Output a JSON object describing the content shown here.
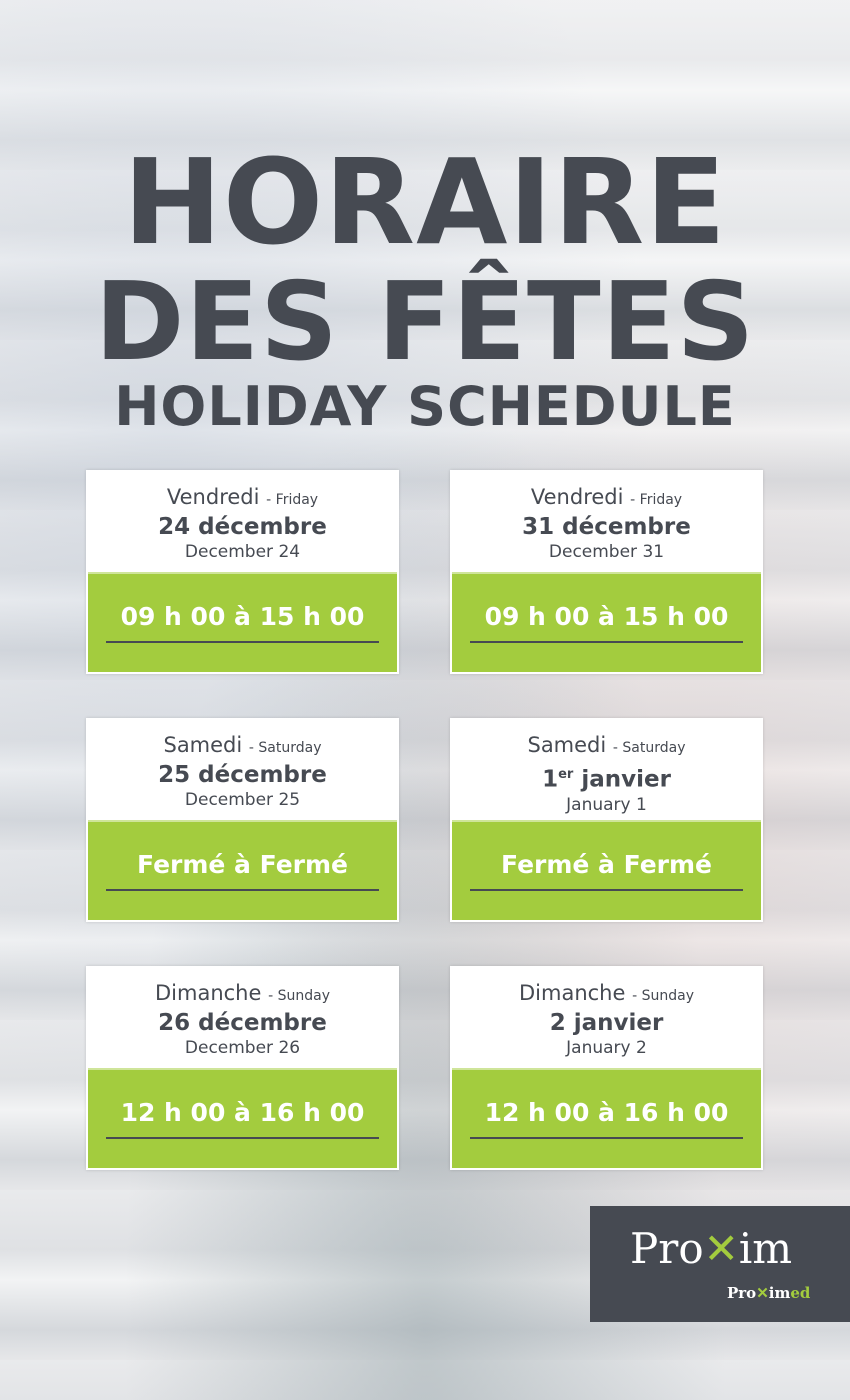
{
  "title": {
    "line1": "HORAIRE",
    "line2": "DES FÊTES",
    "line3": "HOLIDAY SCHEDULE"
  },
  "cards": [
    {
      "day_fr": "Vendredi",
      "day_en": "- Friday",
      "date_fr": "24 décembre",
      "date_en": "December 24",
      "hours": "09 h 00 à 15 h 00"
    },
    {
      "day_fr": "Vendredi",
      "day_en": "- Friday",
      "date_fr": "31 décembre",
      "date_en": "December 31",
      "hours": "09 h 00 à 15 h 00"
    },
    {
      "day_fr": "Samedi",
      "day_en": "- Saturday",
      "date_fr": "25 décembre",
      "date_en": "December 25",
      "hours": "Fermé à Fermé"
    },
    {
      "day_fr": "Samedi",
      "day_en": "- Saturday",
      "date_num": "1",
      "date_sup": "er",
      "date_rest": " janvier",
      "date_en": "January 1",
      "hours": "Fermé à Fermé"
    },
    {
      "day_fr": "Dimanche",
      "day_en": "- Sunday",
      "date_fr": "26 décembre",
      "date_en": "December 26",
      "hours": "12 h 00 à 16 h 00"
    },
    {
      "day_fr": "Dimanche",
      "day_en": "- Sunday",
      "date_fr": "2 janvier",
      "date_en": "January 2",
      "hours": "12 h 00 à 16 h 00"
    }
  ],
  "logo": {
    "brand": "Proxim",
    "sub": "Proximed"
  },
  "colors": {
    "accent": "#a3cc3e",
    "dark": "#464a52"
  }
}
